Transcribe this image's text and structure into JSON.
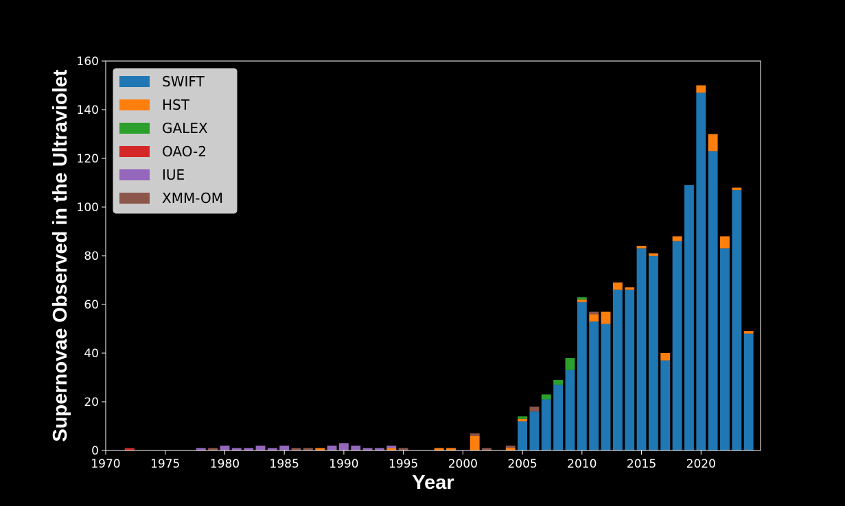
{
  "chart_data": {
    "type": "bar",
    "stacked": true,
    "xlabel": "Year",
    "ylabel": "Supernovae Observed in the Ultraviolet",
    "xlim": [
      1970,
      2025
    ],
    "ylim": [
      0,
      160
    ],
    "xticks": [
      "1970",
      "1975",
      "1980",
      "1985",
      "1990",
      "1995",
      "2000",
      "2005",
      "2010",
      "2015",
      "2020"
    ],
    "yticks": [
      "0",
      "20",
      "40",
      "60",
      "80",
      "100",
      "120",
      "140",
      "160"
    ],
    "grid": false,
    "legend_position": "top-left",
    "x": [
      1972,
      1978,
      1979,
      1980,
      1981,
      1982,
      1983,
      1984,
      1985,
      1986,
      1987,
      1988,
      1989,
      1990,
      1991,
      1992,
      1993,
      1994,
      1995,
      1998,
      1999,
      2001,
      2002,
      2004,
      2005,
      2006,
      2007,
      2008,
      2009,
      2010,
      2011,
      2012,
      2013,
      2014,
      2015,
      2016,
      2017,
      2018,
      2019,
      2020,
      2021,
      2022,
      2023,
      2024
    ],
    "series": [
      {
        "name": "SWIFT",
        "color": "#1f77b4",
        "values": [
          0,
          0,
          0,
          0,
          0,
          0,
          0,
          0,
          0,
          0,
          0,
          0,
          0,
          0,
          0,
          0,
          0,
          0,
          0,
          0,
          0,
          0,
          0,
          0,
          12,
          16,
          21,
          27,
          33,
          61,
          53,
          52,
          66,
          66,
          83,
          80,
          37,
          86,
          109,
          147,
          123,
          83,
          107,
          48
        ]
      },
      {
        "name": "HST",
        "color": "#ff7f0e",
        "values": [
          0,
          0,
          0,
          0,
          0,
          0,
          0,
          0,
          0,
          0,
          0,
          1,
          0,
          0,
          0,
          0,
          0,
          1,
          0,
          1,
          1,
          6,
          0,
          1,
          1,
          0,
          0,
          0,
          0,
          1,
          3,
          5,
          3,
          1,
          1,
          1,
          3,
          2,
          0,
          3,
          7,
          5,
          1,
          1
        ]
      },
      {
        "name": "GALEX",
        "color": "#2ca02c",
        "values": [
          0,
          0,
          0,
          0,
          0,
          0,
          0,
          0,
          0,
          0,
          0,
          0,
          0,
          0,
          0,
          0,
          0,
          0,
          0,
          0,
          0,
          0,
          0,
          0,
          1,
          0,
          2,
          2,
          5,
          1,
          0,
          0,
          0,
          0,
          0,
          0,
          0,
          0,
          0,
          0,
          0,
          0,
          0,
          0
        ]
      },
      {
        "name": "OAO-2",
        "color": "#d62728",
        "values": [
          1,
          0,
          0,
          0,
          0,
          0,
          0,
          0,
          0,
          0,
          0,
          0,
          0,
          0,
          0,
          0,
          0,
          0,
          0,
          0,
          0,
          0,
          0,
          0,
          0,
          0,
          0,
          0,
          0,
          0,
          0,
          0,
          0,
          0,
          0,
          0,
          0,
          0,
          0,
          0,
          0,
          0,
          0,
          0
        ]
      },
      {
        "name": "IUE",
        "color": "#9467bd",
        "values": [
          0,
          1,
          0,
          2,
          1,
          1,
          2,
          1,
          2,
          0,
          0,
          0,
          2,
          3,
          2,
          1,
          1,
          1,
          0,
          0,
          0,
          0,
          0,
          0,
          0,
          0,
          0,
          0,
          0,
          0,
          0,
          0,
          0,
          0,
          0,
          0,
          0,
          0,
          0,
          0,
          0,
          0,
          0,
          0
        ]
      },
      {
        "name": "XMM-OM",
        "color": "#8c564b",
        "values": [
          0,
          0,
          1,
          0,
          0,
          0,
          0,
          0,
          0,
          1,
          1,
          0,
          0,
          0,
          0,
          0,
          0,
          0,
          1,
          0,
          0,
          1,
          1,
          1,
          0,
          2,
          0,
          0,
          0,
          0,
          1,
          0,
          0,
          0,
          0,
          0,
          0,
          0,
          0,
          0,
          0,
          0,
          0,
          0
        ]
      }
    ]
  }
}
